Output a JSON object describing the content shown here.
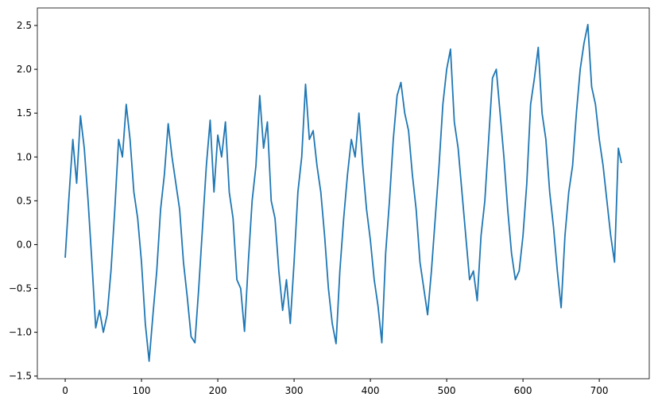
{
  "chart_data": {
    "type": "line",
    "color": "#1f77b4",
    "grid": false,
    "xlim": [
      -36.5,
      765.5
    ],
    "ylim": [
      -1.53,
      2.7
    ],
    "xticks": [
      0,
      100,
      200,
      300,
      400,
      500,
      600,
      700
    ],
    "yticks": [
      {
        "value": -1.5,
        "label": "−1.5"
      },
      {
        "value": -1.0,
        "label": "−1.0"
      },
      {
        "value": -0.5,
        "label": "−0.5"
      },
      {
        "value": 0,
        "label": "0.0"
      },
      0.5,
      {
        "value": 1.0,
        "label": "1.0"
      },
      1.5,
      {
        "value": 2.0,
        "label": "2.0"
      },
      2.5
    ],
    "x": [
      0,
      5,
      10,
      15,
      20,
      25,
      30,
      35,
      40,
      45,
      50,
      55,
      60,
      65,
      70,
      75,
      80,
      85,
      90,
      95,
      100,
      105,
      110,
      115,
      120,
      125,
      130,
      135,
      140,
      145,
      150,
      155,
      160,
      165,
      170,
      175,
      180,
      185,
      190,
      195,
      200,
      205,
      210,
      215,
      220,
      225,
      230,
      235,
      240,
      245,
      250,
      255,
      260,
      265,
      270,
      275,
      280,
      285,
      290,
      295,
      300,
      305,
      310,
      315,
      320,
      325,
      330,
      335,
      340,
      345,
      350,
      355,
      360,
      365,
      370,
      375,
      380,
      385,
      390,
      395,
      400,
      405,
      410,
      415,
      420,
      425,
      430,
      435,
      440,
      445,
      450,
      455,
      460,
      465,
      470,
      475,
      480,
      485,
      490,
      495,
      500,
      505,
      510,
      515,
      520,
      525,
      530,
      535,
      540,
      545,
      550,
      555,
      560,
      565,
      570,
      575,
      580,
      585,
      590,
      595,
      600,
      605,
      610,
      615,
      620,
      625,
      630,
      635,
      640,
      645,
      650,
      655,
      660,
      665,
      670,
      675,
      680,
      685,
      690,
      695,
      700,
      705,
      710,
      715,
      720,
      725,
      729
    ],
    "values": [
      -0.15,
      0.55,
      1.2,
      0.7,
      1.47,
      1.1,
      0.5,
      -0.2,
      -0.95,
      -0.75,
      -1.0,
      -0.8,
      -0.3,
      0.4,
      1.2,
      1.0,
      1.6,
      1.2,
      0.6,
      0.3,
      -0.2,
      -0.9,
      -1.33,
      -0.8,
      -0.3,
      0.4,
      0.8,
      1.38,
      1.0,
      0.7,
      0.4,
      -0.2,
      -0.6,
      -1.05,
      -1.12,
      -0.5,
      0.2,
      0.9,
      1.42,
      0.6,
      1.25,
      1.0,
      1.4,
      0.6,
      0.3,
      -0.4,
      -0.5,
      -0.99,
      -0.2,
      0.5,
      0.9,
      1.7,
      1.1,
      1.4,
      0.5,
      0.3,
      -0.3,
      -0.75,
      -0.4,
      -0.9,
      -0.2,
      0.6,
      1.0,
      1.83,
      1.2,
      1.3,
      0.9,
      0.6,
      0.1,
      -0.5,
      -0.9,
      -1.13,
      -0.3,
      0.3,
      0.8,
      1.2,
      1.0,
      1.5,
      0.9,
      0.4,
      0.05,
      -0.4,
      -0.7,
      -1.12,
      -0.1,
      0.5,
      1.2,
      1.7,
      1.85,
      1.5,
      1.3,
      0.8,
      0.4,
      -0.2,
      -0.5,
      -0.8,
      -0.3,
      0.3,
      0.9,
      1.6,
      2.0,
      2.23,
      1.4,
      1.1,
      0.6,
      0.1,
      -0.4,
      -0.3,
      -0.64,
      0.1,
      0.5,
      1.2,
      1.9,
      2.0,
      1.5,
      1.0,
      0.4,
      -0.1,
      -0.4,
      -0.3,
      0.1,
      0.7,
      1.6,
      1.9,
      2.25,
      1.5,
      1.2,
      0.6,
      0.2,
      -0.3,
      -0.72,
      0.1,
      0.6,
      0.9,
      1.5,
      2.0,
      2.3,
      2.51,
      1.8,
      1.6,
      1.2,
      0.9,
      0.5,
      0.1,
      -0.2,
      1.1,
      0.93
    ]
  }
}
